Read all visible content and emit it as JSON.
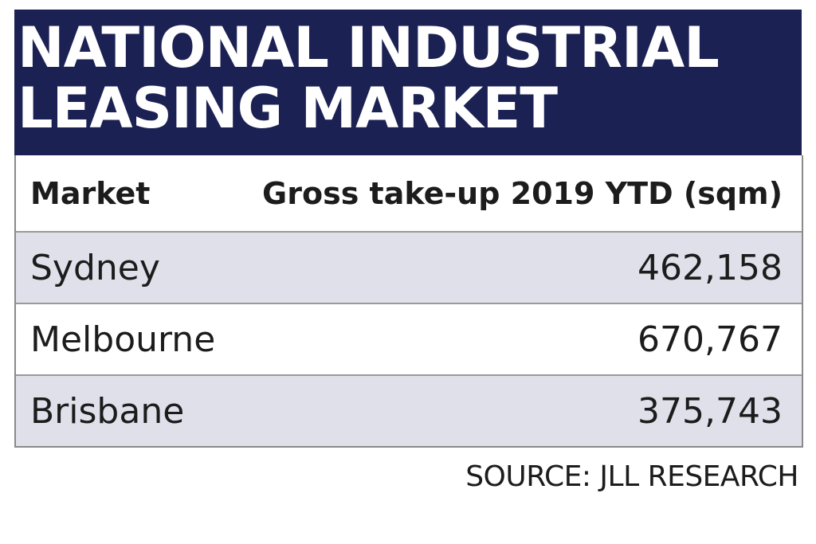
{
  "chart_data": {
    "type": "table",
    "title": "NATIONAL INDUSTRIAL LEASING MARKET",
    "title_lines": [
      "NATIONAL INDUSTRIAL",
      "LEASING MARKET"
    ],
    "columns": [
      "Market",
      "Gross take-up 2019 YTD (sqm)"
    ],
    "rows": [
      {
        "market": "Sydney",
        "value": "462,158"
      },
      {
        "market": "Melbourne",
        "value": "670,767"
      },
      {
        "market": "Brisbane",
        "value": "375,743"
      }
    ],
    "source": "SOURCE: JLL RESEARCH",
    "colors": {
      "banner": "#1b2253",
      "shaded_row": "#dfe0ea",
      "border": "#8a8a8a"
    }
  }
}
